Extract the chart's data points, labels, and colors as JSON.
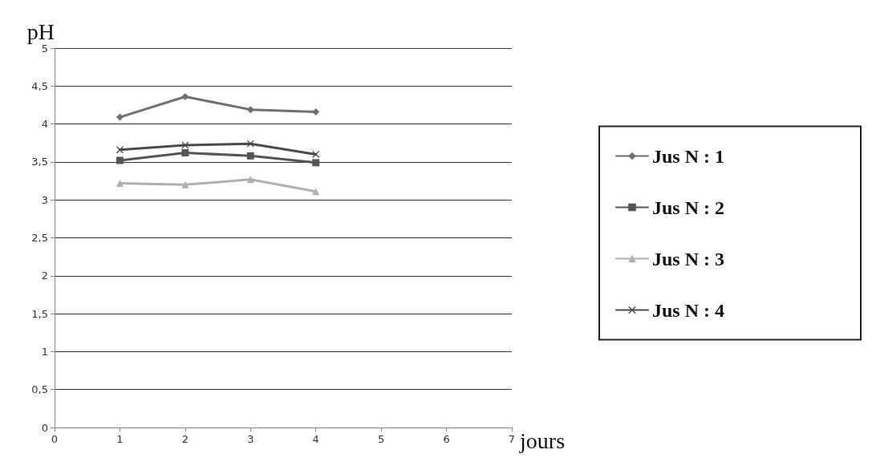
{
  "chart_data": {
    "type": "line",
    "xlabel": "jours",
    "ylabel": "pH",
    "x": [
      1,
      2,
      3,
      4
    ],
    "series": [
      {
        "name": "Jus N : 1",
        "color": "#707070",
        "marker": "diamond",
        "values": [
          4.09,
          4.36,
          4.19,
          4.16
        ]
      },
      {
        "name": "Jus N : 2",
        "color": "#555555",
        "marker": "square",
        "values": [
          3.52,
          3.62,
          3.58,
          3.49
        ]
      },
      {
        "name": "Jus N : 3",
        "color": "#b0b0b0",
        "marker": "triangle",
        "values": [
          3.22,
          3.2,
          3.27,
          3.11
        ]
      },
      {
        "name": "Jus N : 4",
        "color": "#4a4a4a",
        "marker": "cross",
        "values": [
          3.66,
          3.72,
          3.74,
          3.6
        ]
      }
    ],
    "xlim": [
      0,
      7
    ],
    "xticks": [
      0,
      1,
      2,
      3,
      4,
      5,
      6,
      7
    ],
    "ylim": [
      0,
      5
    ],
    "yticks": [
      0,
      {
        "value": 0.5,
        "label": "0,5"
      },
      1,
      {
        "value": 1.5,
        "label": "1,5"
      },
      2,
      {
        "value": 2.5,
        "label": "2,5"
      },
      3,
      {
        "value": 3.5,
        "label": "3,5"
      },
      4,
      {
        "value": 4.5,
        "label": "4,5"
      },
      5
    ],
    "grid": "y",
    "legend": "right",
    "line_style": "solid"
  }
}
